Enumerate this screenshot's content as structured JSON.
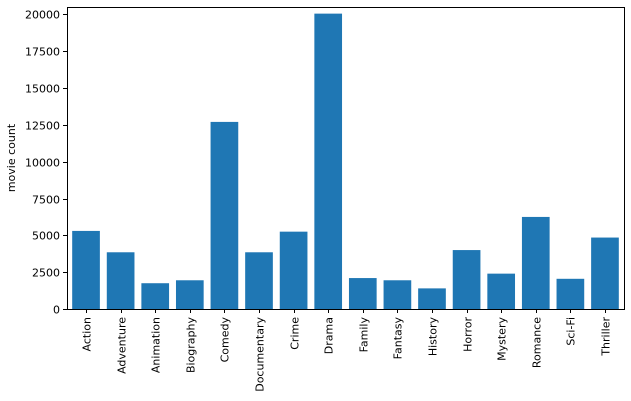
{
  "chart_data": {
    "type": "bar",
    "title": "",
    "xlabel": "",
    "ylabel": "movie count",
    "categories": [
      "Action",
      "Adventure",
      "Animation",
      "Biography",
      "Comedy",
      "Documentary",
      "Crime",
      "Drama",
      "Family",
      "Fantasy",
      "History",
      "Horror",
      "Mystery",
      "Romance",
      "Sci-Fi",
      "Thriller"
    ],
    "values": [
      5300,
      3850,
      1750,
      1950,
      12700,
      3850,
      5250,
      20050,
      2100,
      1950,
      1400,
      4000,
      2400,
      6250,
      2050,
      4850
    ],
    "ylim": [
      0,
      20500
    ],
    "yticks": [
      0,
      2500,
      5000,
      7500,
      10000,
      12500,
      15000,
      17500,
      20000
    ],
    "bar_color": "#1f77b4",
    "grid": false,
    "legend": "none"
  }
}
